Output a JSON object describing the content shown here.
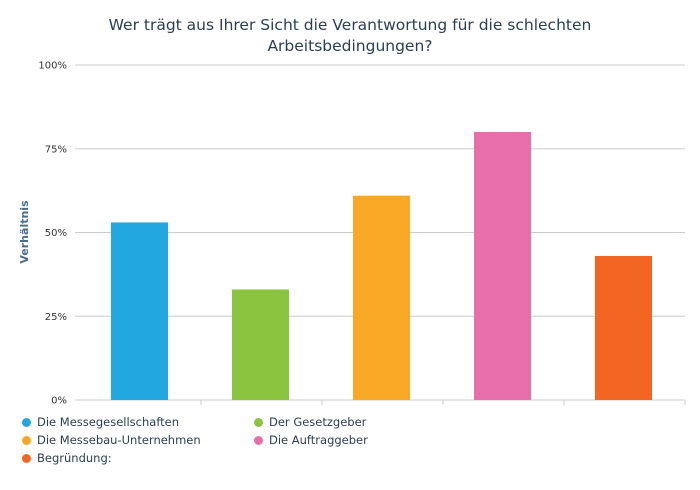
{
  "chart_data": {
    "type": "bar",
    "title": "Wer trägt aus Ihrer Sicht die Verantwortung für die schlechten Arbeitsbedingungen?",
    "title_lines": [
      "Wer trägt aus Ihrer Sicht die Verantwortung für die schlechten",
      "Arbeitsbedingungen?"
    ],
    "xlabel": "",
    "ylabel": "Verhältnis",
    "ylim": [
      0,
      100
    ],
    "yticks": [
      "0%",
      "25%",
      "50%",
      "75%",
      "100%"
    ],
    "ytick_values": [
      0,
      25,
      50,
      75,
      100
    ],
    "grid": true,
    "legend_position": "bottom-left",
    "categories": [
      "Die Messegesellschaften",
      "Der Gesetzgeber",
      "Die Messebau-Unternehmen",
      "Die Auftraggeber",
      "Begründung:"
    ],
    "values": [
      53,
      33,
      61,
      80,
      43
    ],
    "colors": [
      "#22a7e0",
      "#8bc540",
      "#f9a825",
      "#e96fac",
      "#f26522"
    ]
  }
}
